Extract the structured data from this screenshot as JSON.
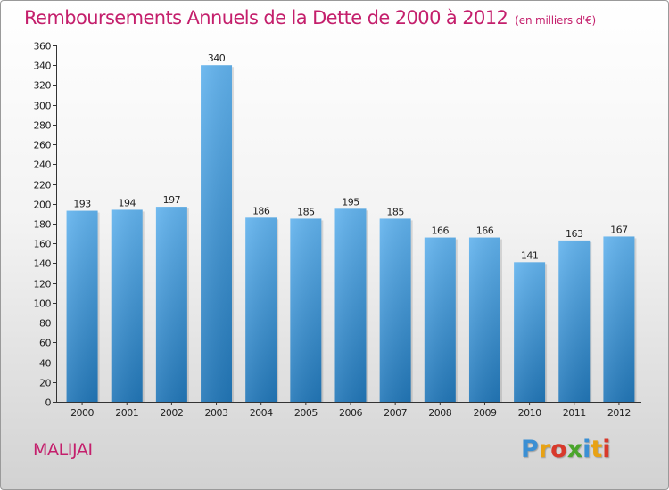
{
  "header": {
    "title": "Remboursements Annuels de la Dette de 2000 à 2012",
    "subtitle": "(en milliers d'€)"
  },
  "footer": {
    "commune": "MALIJAI",
    "logo_letters": [
      "P",
      "r",
      "o",
      "x",
      "i",
      "t",
      "i"
    ],
    "logo_colors": [
      "#3a8fd4",
      "#e8a214",
      "#d8392b",
      "#4aa52b",
      "#3a8fd4",
      "#e8a214",
      "#d8392b"
    ]
  },
  "colors": {
    "bar_top": "#62b3ee",
    "bar_bottom": "#2277b8",
    "title": "#c41f6c"
  },
  "chart_data": {
    "type": "bar",
    "categories": [
      "2000",
      "2001",
      "2002",
      "2003",
      "2004",
      "2005",
      "2006",
      "2007",
      "2008",
      "2009",
      "2010",
      "2011",
      "2012"
    ],
    "values": [
      193,
      194,
      197,
      340,
      186,
      185,
      195,
      185,
      166,
      166,
      141,
      163,
      167
    ],
    "title": "Remboursements Annuels de la Dette de 2000 à 2012",
    "xlabel": "",
    "ylabel": "",
    "ylim": [
      0,
      360
    ],
    "yticks": [
      0,
      20,
      40,
      60,
      80,
      100,
      120,
      140,
      160,
      180,
      200,
      220,
      240,
      260,
      280,
      300,
      320,
      340,
      360
    ],
    "grid": false,
    "data_labels": true
  }
}
